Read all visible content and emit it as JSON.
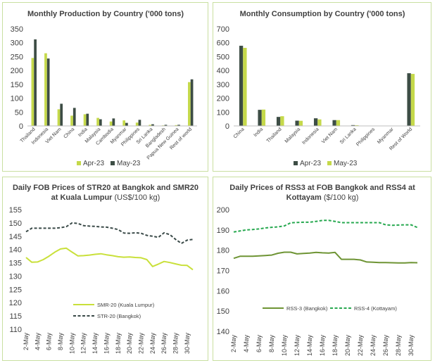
{
  "colors": {
    "light": "#c5d94a",
    "dark": "#3d4d45",
    "light_line": "#c9e03a",
    "dark_line": "#3a4a48",
    "rss3": "#6e9434",
    "rss4": "#26a84f",
    "border": "#c9dfa0",
    "axis": "#bfbfbf"
  },
  "chart_data": [
    {
      "type": "bar",
      "title": "Monthly Production by Country ('000 tons)",
      "categories": [
        "Thailand",
        "Indonesia",
        "Viet Nam",
        "China",
        "India",
        "Malaysia",
        "Cambodia",
        "Myanmar",
        "Philippines",
        "Sri Lanka",
        "Bangladesh",
        "Papua New Guinea",
        "Rest of world"
      ],
      "series": [
        {
          "name": "Apr-23",
          "values": [
            245,
            262,
            60,
            37,
            42,
            29,
            16,
            20,
            12,
            4,
            2,
            3,
            158
          ]
        },
        {
          "name": "May-23",
          "values": [
            312,
            243,
            80,
            65,
            44,
            24,
            27,
            11,
            22,
            6,
            4,
            4,
            168
          ]
        }
      ],
      "ylim": [
        0,
        350
      ],
      "yticks": [
        0,
        50,
        100,
        150,
        200,
        250,
        300,
        350
      ],
      "legend": "bottom"
    },
    {
      "type": "bar",
      "title": "Monthly Consumption by Country ('000 tons)",
      "categories": [
        "China",
        "India",
        "Thailand",
        "Malaysia",
        "Indonesia",
        "Viet Nam",
        "Sri Lanka",
        "Philippines",
        "Myanmar",
        "Rest of World"
      ],
      "series": [
        {
          "name": "Apr-23",
          "values": [
            578,
            116,
            65,
            38,
            55,
            42,
            6,
            1,
            1,
            380
          ]
        },
        {
          "name": "May-23",
          "values": [
            563,
            118,
            70,
            37,
            47,
            42,
            5,
            1,
            1,
            375
          ]
        }
      ],
      "ylim": [
        0,
        700
      ],
      "yticks": [
        0,
        100,
        200,
        300,
        400,
        500,
        600,
        700
      ],
      "legend": "bottom"
    },
    {
      "type": "line",
      "title_line1": "Daily FOB Prices of STR20 at Bangkok and SMR20",
      "title_line2": "at Kuala Lumpur",
      "title_unit": "(US$/100 kg)",
      "x": [
        "2-May",
        "3-May",
        "4-May",
        "5-May",
        "6-May",
        "7-May",
        "8-May",
        "9-May",
        "10-May",
        "11-May",
        "12-May",
        "13-May",
        "14-May",
        "15-May",
        "16-May",
        "17-May",
        "18-May",
        "19-May",
        "20-May",
        "21-May",
        "22-May",
        "23-May",
        "24-May",
        "25-May",
        "26-May",
        "27-May",
        "28-May",
        "29-May",
        "30-May",
        "31-May"
      ],
      "x_tick_labels": [
        "2-May",
        "4-May",
        "6-May",
        "8-May",
        "10-May",
        "12-May",
        "14-May",
        "16-May",
        "18-May",
        "20-May",
        "22-May",
        "24-May",
        "26-May",
        "28-May",
        "30-May"
      ],
      "series": [
        {
          "name": "SMR-20 (Kuala Lumpur)",
          "style": "solid",
          "values": [
            137,
            135.2,
            135.3,
            136.2,
            137.5,
            139,
            140.2,
            140.5,
            139,
            137.6,
            137.7,
            137.9,
            138.2,
            138.4,
            138,
            137.7,
            137.3,
            137.1,
            137.2,
            137,
            136.9,
            136.2,
            133.6,
            134.5,
            135.5,
            135.1,
            134.6,
            134.1,
            134,
            132.4
          ]
        },
        {
          "name": "STR-20 (Bangkok)",
          "style": "dashed",
          "values": [
            146.7,
            148,
            148,
            148,
            148,
            148,
            148.2,
            148.6,
            150,
            149.8,
            149,
            148.8,
            148.7,
            148.5,
            148.4,
            148,
            147.5,
            146.2,
            146.1,
            146.3,
            146.1,
            145.3,
            145,
            144.6,
            146.3,
            145.6,
            143.8,
            142.3,
            143.5,
            143.8
          ]
        }
      ],
      "ylim": [
        110,
        155
      ],
      "yticks": [
        110,
        115,
        120,
        125,
        130,
        135,
        140,
        145,
        150,
        155
      ],
      "legend": "inside-bottom"
    },
    {
      "type": "line",
      "title_line1": "Daily Prices of RSS3 at FOB Bangkok and RSS4 at",
      "title_line2": "Kottayam",
      "title_unit": "($/100 kg)",
      "x": [
        "2-May",
        "3-May",
        "4-May",
        "5-May",
        "6-May",
        "7-May",
        "8-May",
        "9-May",
        "10-May",
        "11-May",
        "12-May",
        "13-May",
        "14-May",
        "15-May",
        "16-May",
        "17-May",
        "18-May",
        "19-May",
        "20-May",
        "21-May",
        "22-May",
        "23-May",
        "24-May",
        "25-May",
        "26-May",
        "27-May",
        "28-May",
        "29-May",
        "30-May",
        "31-May"
      ],
      "x_tick_labels": [
        "2-May",
        "4-May",
        "6-May",
        "8-May",
        "10-May",
        "12-May",
        "14-May",
        "16-May",
        "18-May",
        "20-May",
        "22-May",
        "24-May",
        "26-May",
        "28-May",
        "30-May"
      ],
      "series": [
        {
          "name": "RSS-3 (Bangkok)",
          "style": "solid",
          "values": [
            176,
            177,
            177,
            177,
            177.2,
            177.4,
            177.6,
            178.5,
            179,
            179,
            178.2,
            178.4,
            178.6,
            178.9,
            178.7,
            178.6,
            178.9,
            175.5,
            175.5,
            175.5,
            175.2,
            174.2,
            174.1,
            173.9,
            173.9,
            173.8,
            173.7,
            173.7,
            173.9,
            173.8
          ]
        },
        {
          "name": "RSS-4 (Kottayam)",
          "style": "dashed",
          "values": [
            189,
            189.5,
            190,
            190.2,
            190.5,
            191,
            191.3,
            191.5,
            192,
            193.5,
            193.7,
            193.8,
            193.8,
            194.2,
            194.7,
            194.7,
            194.2,
            193.6,
            193.6,
            193.6,
            193.6,
            193.6,
            193.6,
            193.6,
            192.5,
            192.3,
            192.4,
            192.5,
            192.5,
            191.2
          ]
        }
      ],
      "ylim": [
        140,
        200
      ],
      "yticks": [
        140,
        150,
        160,
        170,
        180,
        190,
        200
      ],
      "legend": "inside-bottom"
    }
  ]
}
